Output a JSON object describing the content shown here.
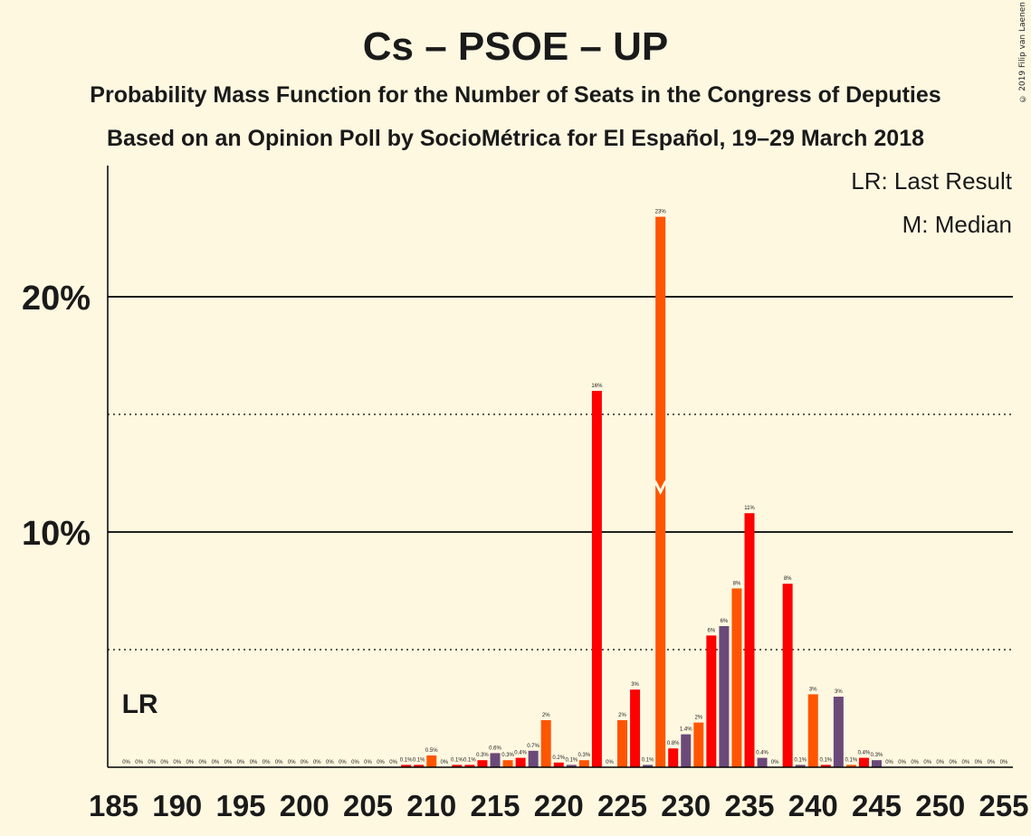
{
  "copyright": "© 2019 Filip van Laenen",
  "chart_data": {
    "type": "bar",
    "title": "Cs – PSOE – UP",
    "subtitle1": "Probability Mass Function for the Number of Seats in the Congress of Deputies",
    "subtitle2": "Based on an Opinion Poll by SocioMétrica for El Español, 19–29 March 2018",
    "legend_lr": "LR: Last Result",
    "legend_m": "M: Median",
    "lr_label": "LR",
    "last_result": 187,
    "median": 228,
    "median_marker": "M",
    "xlim": [
      185,
      255
    ],
    "ylim": [
      0,
      25
    ],
    "x_ticks": [
      185,
      190,
      195,
      200,
      205,
      210,
      215,
      220,
      225,
      230,
      235,
      240,
      245,
      250,
      255
    ],
    "y_ticks_labeled": [
      {
        "value": 10,
        "label": "10%"
      },
      {
        "value": 20,
        "label": "20%"
      }
    ],
    "y_ticks_dotted": [
      5,
      15
    ],
    "colors": {
      "background": "#fff8e1",
      "red": "#ff0000",
      "orange": "#ff5500",
      "purple": "#6b4a7a",
      "axis": "#000000"
    },
    "bars": [
      {
        "x": 186,
        "value": 0,
        "label": "0%",
        "color": "red"
      },
      {
        "x": 187,
        "value": 0,
        "label": "0%",
        "color": "red"
      },
      {
        "x": 188,
        "value": 0,
        "label": "0%",
        "color": "red"
      },
      {
        "x": 189,
        "value": 0,
        "label": "0%",
        "color": "red"
      },
      {
        "x": 190,
        "value": 0,
        "label": "0%",
        "color": "red"
      },
      {
        "x": 191,
        "value": 0,
        "label": "0%",
        "color": "red"
      },
      {
        "x": 192,
        "value": 0,
        "label": "0%",
        "color": "red"
      },
      {
        "x": 193,
        "value": 0,
        "label": "0%",
        "color": "red"
      },
      {
        "x": 194,
        "value": 0,
        "label": "0%",
        "color": "red"
      },
      {
        "x": 195,
        "value": 0,
        "label": "0%",
        "color": "red"
      },
      {
        "x": 196,
        "value": 0,
        "label": "0%",
        "color": "red"
      },
      {
        "x": 197,
        "value": 0,
        "label": "0%",
        "color": "red"
      },
      {
        "x": 198,
        "value": 0,
        "label": "0%",
        "color": "red"
      },
      {
        "x": 199,
        "value": 0,
        "label": "0%",
        "color": "red"
      },
      {
        "x": 200,
        "value": 0,
        "label": "0%",
        "color": "red"
      },
      {
        "x": 201,
        "value": 0,
        "label": "0%",
        "color": "red"
      },
      {
        "x": 202,
        "value": 0,
        "label": "0%",
        "color": "red"
      },
      {
        "x": 203,
        "value": 0,
        "label": "0%",
        "color": "red"
      },
      {
        "x": 204,
        "value": 0,
        "label": "0%",
        "color": "red"
      },
      {
        "x": 205,
        "value": 0,
        "label": "0%",
        "color": "red"
      },
      {
        "x": 206,
        "value": 0,
        "label": "0%",
        "color": "red"
      },
      {
        "x": 207,
        "value": 0,
        "label": "0%",
        "color": "red"
      },
      {
        "x": 208,
        "value": 0.1,
        "label": "0.1%",
        "color": "red"
      },
      {
        "x": 209,
        "value": 0.1,
        "label": "0.1%",
        "color": "red"
      },
      {
        "x": 210,
        "value": 0.5,
        "label": "0.5%",
        "color": "orange"
      },
      {
        "x": 211,
        "value": 0,
        "label": "0%",
        "color": "red"
      },
      {
        "x": 212,
        "value": 0.1,
        "label": "0.1%",
        "color": "red"
      },
      {
        "x": 213,
        "value": 0.1,
        "label": "0.1%",
        "color": "red"
      },
      {
        "x": 214,
        "value": 0.3,
        "label": "0.3%",
        "color": "red"
      },
      {
        "x": 215,
        "value": 0.6,
        "label": "0.6%",
        "color": "purple"
      },
      {
        "x": 216,
        "value": 0.3,
        "label": "0.3%",
        "color": "orange"
      },
      {
        "x": 217,
        "value": 0.4,
        "label": "0.4%",
        "color": "red"
      },
      {
        "x": 218,
        "value": 0.7,
        "label": "0.7%",
        "color": "purple"
      },
      {
        "x": 219,
        "value": 2,
        "label": "2%",
        "color": "orange"
      },
      {
        "x": 220,
        "value": 0.2,
        "label": "0.2%",
        "color": "red"
      },
      {
        "x": 221,
        "value": 0.1,
        "label": "0.1%",
        "color": "purple"
      },
      {
        "x": 222,
        "value": 0.3,
        "label": "0.3%",
        "color": "orange"
      },
      {
        "x": 223,
        "value": 16,
        "label": "16%",
        "color": "red"
      },
      {
        "x": 224,
        "value": 0,
        "label": "0%",
        "color": "red"
      },
      {
        "x": 225,
        "value": 2,
        "label": "2%",
        "color": "orange"
      },
      {
        "x": 226,
        "value": 3.3,
        "label": "3%",
        "color": "red"
      },
      {
        "x": 227,
        "value": 0.1,
        "label": "0.1%",
        "color": "purple"
      },
      {
        "x": 228,
        "value": 23.4,
        "label": "23%",
        "color": "orange"
      },
      {
        "x": 229,
        "value": 0.8,
        "label": "0.8%",
        "color": "red"
      },
      {
        "x": 230,
        "value": 1.4,
        "label": "1.4%",
        "color": "purple"
      },
      {
        "x": 231,
        "value": 1.9,
        "label": "2%",
        "color": "orange"
      },
      {
        "x": 232,
        "value": 5.6,
        "label": "6%",
        "color": "red"
      },
      {
        "x": 233,
        "value": 6,
        "label": "6%",
        "color": "purple"
      },
      {
        "x": 234,
        "value": 7.6,
        "label": "8%",
        "color": "orange"
      },
      {
        "x": 235,
        "value": 10.8,
        "label": "11%",
        "color": "red"
      },
      {
        "x": 236,
        "value": 0.4,
        "label": "0.4%",
        "color": "purple"
      },
      {
        "x": 237,
        "value": 0,
        "label": "0%",
        "color": "red"
      },
      {
        "x": 238,
        "value": 7.8,
        "label": "8%",
        "color": "red"
      },
      {
        "x": 239,
        "value": 0.1,
        "label": "0.1%",
        "color": "purple"
      },
      {
        "x": 240,
        "value": 3.1,
        "label": "3%",
        "color": "orange"
      },
      {
        "x": 241,
        "value": 0.1,
        "label": "0.1%",
        "color": "red"
      },
      {
        "x": 242,
        "value": 3,
        "label": "3%",
        "color": "purple"
      },
      {
        "x": 243,
        "value": 0.1,
        "label": "0.1%",
        "color": "orange"
      },
      {
        "x": 244,
        "value": 0.4,
        "label": "0.4%",
        "color": "red"
      },
      {
        "x": 245,
        "value": 0.3,
        "label": "0.3%",
        "color": "purple"
      },
      {
        "x": 246,
        "value": 0,
        "label": "0%",
        "color": "red"
      },
      {
        "x": 247,
        "value": 0,
        "label": "0%",
        "color": "red"
      },
      {
        "x": 248,
        "value": 0,
        "label": "0%",
        "color": "red"
      },
      {
        "x": 249,
        "value": 0,
        "label": "0%",
        "color": "red"
      },
      {
        "x": 250,
        "value": 0,
        "label": "0%",
        "color": "red"
      },
      {
        "x": 251,
        "value": 0,
        "label": "0%",
        "color": "red"
      },
      {
        "x": 252,
        "value": 0,
        "label": "0%",
        "color": "red"
      },
      {
        "x": 253,
        "value": 0,
        "label": "0%",
        "color": "red"
      },
      {
        "x": 254,
        "value": 0,
        "label": "0%",
        "color": "red"
      },
      {
        "x": 255,
        "value": 0,
        "label": "0%",
        "color": "red"
      }
    ]
  }
}
